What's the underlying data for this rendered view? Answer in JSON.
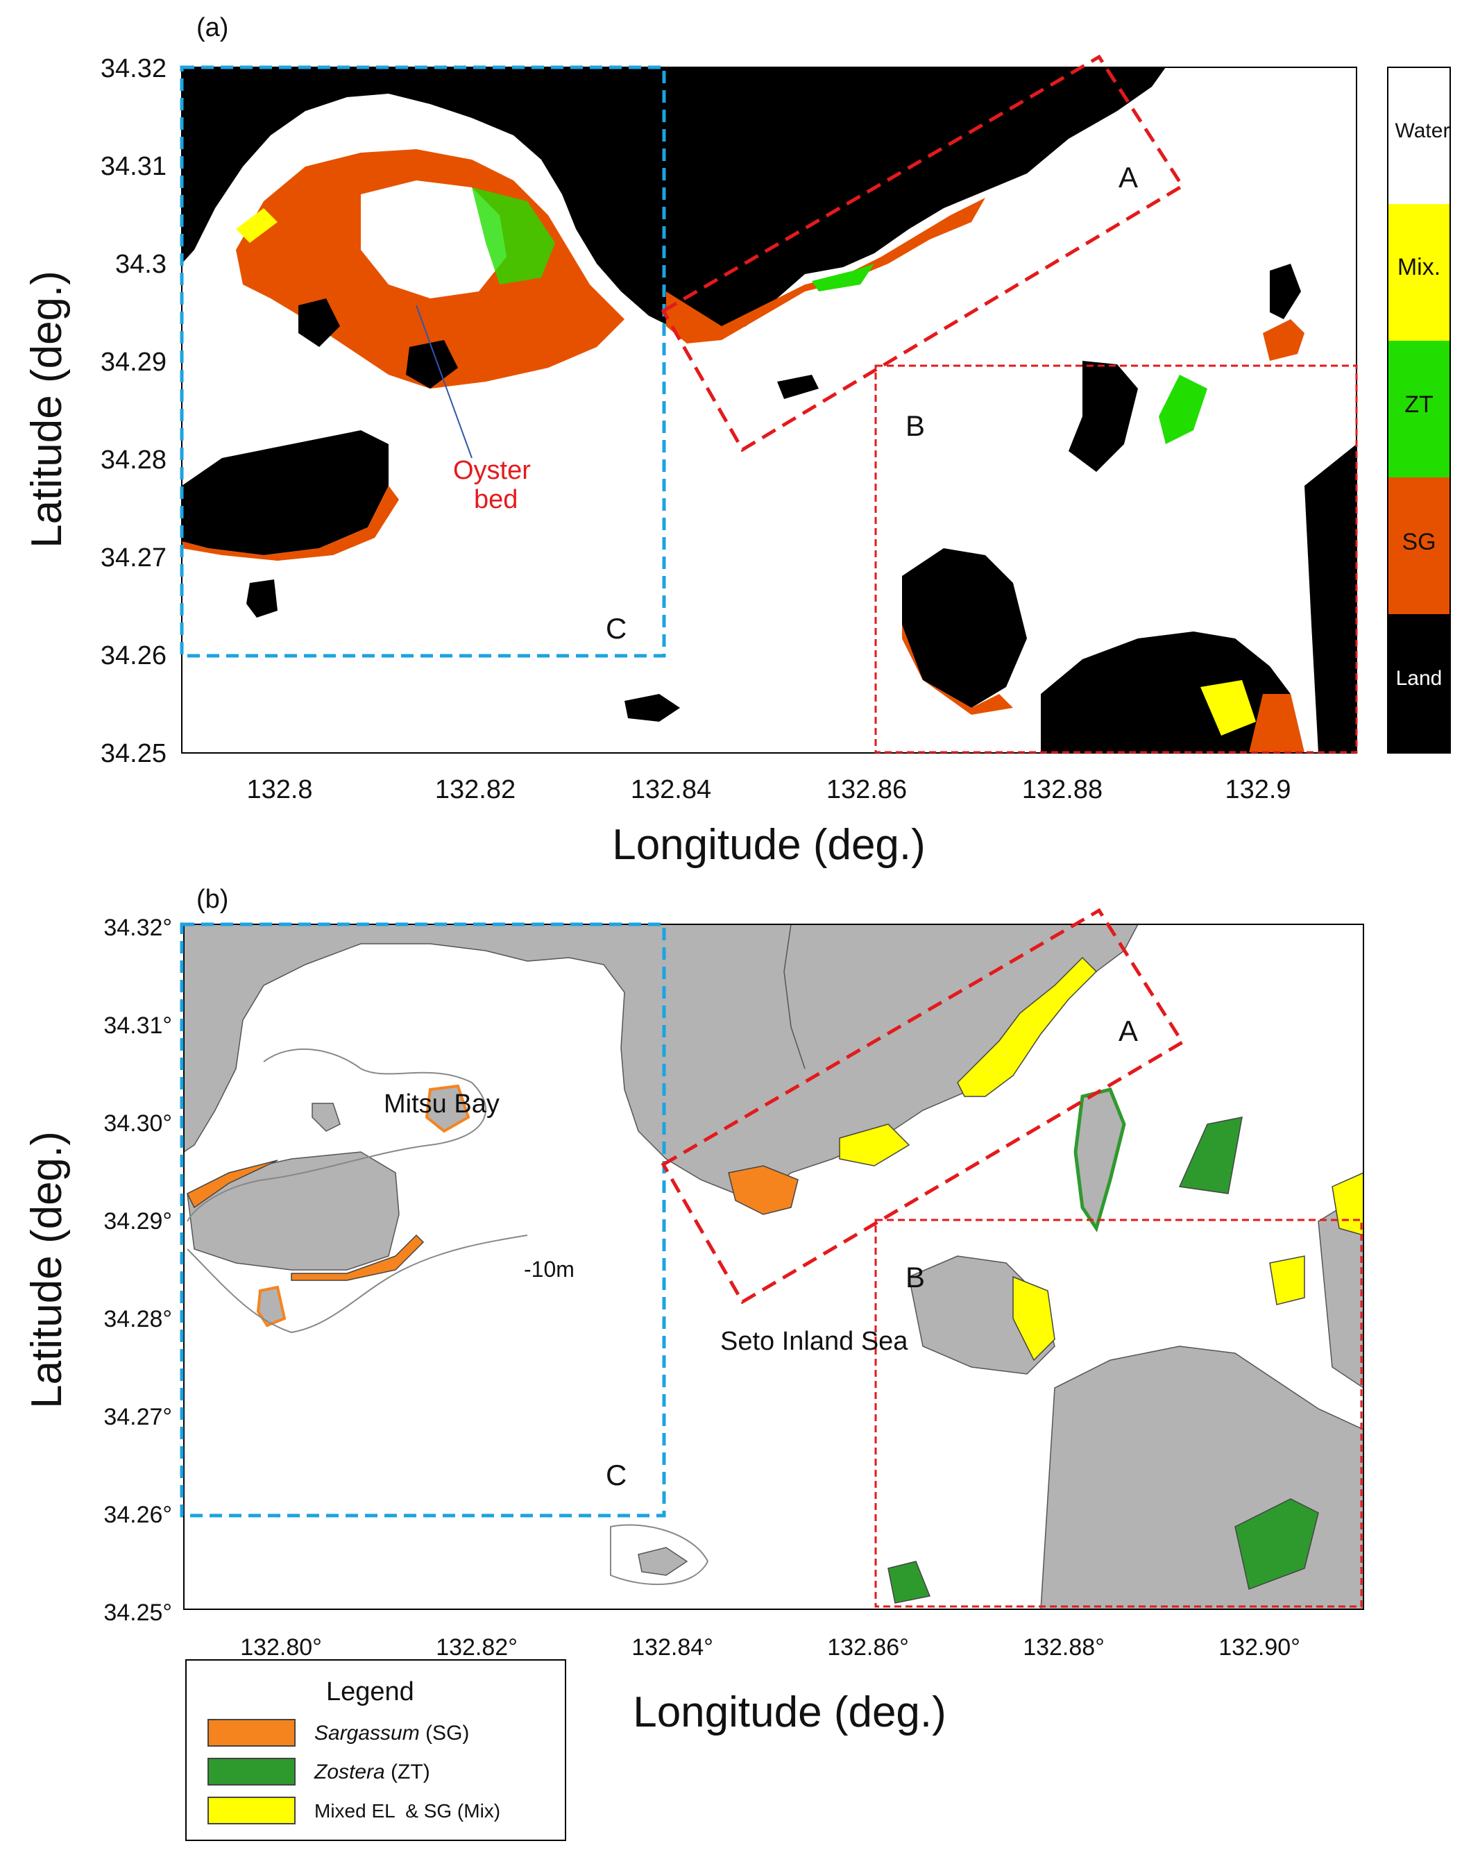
{
  "panel_a": {
    "label": "(a)",
    "y_ticks": [
      "34.32",
      "34.31",
      "34.3",
      "34.29",
      "34.28",
      "34.27",
      "34.26",
      "34.25"
    ],
    "x_ticks": [
      "132.8",
      "132.82",
      "132.84",
      "132.86",
      "132.88",
      "132.9"
    ],
    "ylabel": "Latitude (deg.)",
    "xlabel": "Longitude (deg.)",
    "box_a": "A",
    "box_b": "B",
    "box_c": "C",
    "annotation": "Oyster bed",
    "colorbar": [
      {
        "label": "Water",
        "color": "#ffffff"
      },
      {
        "label": "Mix.",
        "color": "#ffff00"
      },
      {
        "label": "ZT",
        "color": "#22dd00"
      },
      {
        "label": "SG",
        "color": "#e65100"
      },
      {
        "label": "Land",
        "color": "#000000"
      }
    ]
  },
  "panel_b": {
    "label": "(b)",
    "y_ticks": [
      "34.32°",
      "34.31°",
      "34.30°",
      "34.29°",
      "34.28°",
      "34.27°",
      "34.26°",
      "34.25°"
    ],
    "x_ticks": [
      "132.80°",
      "132.82°",
      "132.84°",
      "132.86°",
      "132.88°",
      "132.90°"
    ],
    "ylabel": "Latitude (deg.)",
    "xlabel": "Longitude (deg.)",
    "box_a": "A",
    "box_b": "B",
    "box_c": "C",
    "place_1": "Mitsu Bay",
    "place_2": "Seto Inland Sea",
    "contour_label": "-10m",
    "legend": {
      "title": "Legend",
      "items": [
        {
          "name": "Sargassum",
          "suffix": " (SG)",
          "color": "#f5841f"
        },
        {
          "name": "Zostera",
          "suffix": " (ZT)",
          "color": "#2e9a2e"
        },
        {
          "name": "Mixed EL  & SG",
          "suffix": " (Mix)",
          "color": "#ffff00"
        }
      ]
    }
  },
  "colors": {
    "land_a": "#000000",
    "land_b": "#b3b3b3",
    "box_red": "#e41a1c",
    "box_blue": "#1ca3e0"
  }
}
